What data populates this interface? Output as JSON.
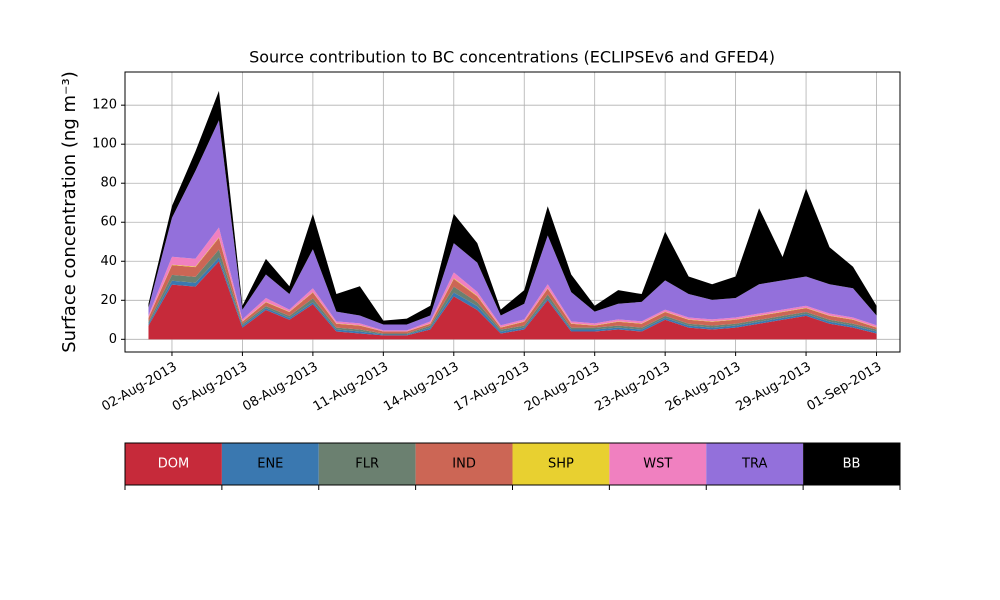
{
  "chart_data": {
    "type": "stacked_area",
    "title": "Source contribution to BC concentrations (ECLIPSEv6 and GFED4)",
    "ylabel": "Surface concentration (ng m⁻³)",
    "x": [
      "2013-08-01",
      "2013-08-02",
      "2013-08-03",
      "2013-08-04",
      "2013-08-05",
      "2013-08-06",
      "2013-08-07",
      "2013-08-08",
      "2013-08-09",
      "2013-08-10",
      "2013-08-11",
      "2013-08-12",
      "2013-08-13",
      "2013-08-14",
      "2013-08-15",
      "2013-08-16",
      "2013-08-17",
      "2013-08-18",
      "2013-08-19",
      "2013-08-20",
      "2013-08-21",
      "2013-08-22",
      "2013-08-23",
      "2013-08-24",
      "2013-08-25",
      "2013-08-26",
      "2013-08-27",
      "2013-08-28",
      "2013-08-29",
      "2013-08-30",
      "2013-08-31",
      "2013-09-01"
    ],
    "series": [
      {
        "name": "DOM",
        "color": "#c62a3a",
        "values": [
          7,
          28,
          27,
          40,
          6,
          15,
          10,
          18,
          4,
          3,
          2,
          2,
          5,
          22,
          15,
          3,
          5,
          20,
          4,
          4,
          5,
          4,
          10,
          6,
          5,
          6,
          8,
          10,
          12,
          8,
          6,
          3
        ]
      },
      {
        "name": "ENE",
        "color": "#3a78b0",
        "values": [
          1,
          2,
          2,
          2,
          1,
          1,
          1,
          1,
          1,
          1,
          0.5,
          0.5,
          1,
          2,
          2,
          1,
          1,
          1,
          1,
          1,
          1,
          1,
          1,
          1,
          1,
          1,
          1,
          1,
          1,
          1,
          1,
          1
        ]
      },
      {
        "name": "FLR",
        "color": "#6b8070",
        "values": [
          1,
          3,
          3,
          4,
          1,
          1,
          1,
          2,
          1,
          1,
          0.5,
          0.5,
          1,
          3,
          2,
          1,
          1,
          2,
          1,
          1,
          1,
          1,
          1,
          1,
          1,
          1,
          1,
          1,
          1,
          1,
          1,
          1
        ]
      },
      {
        "name": "IND",
        "color": "#cc6655",
        "values": [
          2,
          5,
          5,
          6,
          1,
          2,
          2,
          3,
          2,
          2,
          1,
          1,
          1,
          4,
          3,
          1,
          2,
          3,
          2,
          1,
          2,
          2,
          2,
          2,
          2,
          2,
          2,
          2,
          2,
          2,
          2,
          1
        ]
      },
      {
        "name": "SHP",
        "color": "#e8d030",
        "values": [
          0.2,
          0.3,
          0.3,
          0.3,
          0.2,
          0.2,
          0.2,
          0.2,
          0.2,
          0.2,
          0.1,
          0.1,
          0.2,
          0.3,
          0.3,
          0.2,
          0.2,
          0.2,
          0.2,
          0.2,
          0.2,
          0.2,
          0.2,
          0.2,
          0.2,
          0.2,
          0.2,
          0.2,
          0.2,
          0.2,
          0.2,
          0.2
        ]
      },
      {
        "name": "WST",
        "color": "#f080c0",
        "values": [
          1,
          4,
          4,
          5,
          1,
          2,
          1,
          2,
          1,
          1,
          0.5,
          0.5,
          1,
          3,
          2,
          1,
          1,
          2,
          1,
          1,
          1,
          1,
          1,
          1,
          1,
          1,
          1,
          1,
          1,
          1,
          1,
          1
        ]
      },
      {
        "name": "TRA",
        "color": "#9370db",
        "values": [
          4,
          20,
          45,
          55,
          5,
          12,
          8,
          20,
          5,
          4,
          3,
          3,
          3,
          15,
          15,
          5,
          8,
          25,
          15,
          6,
          8,
          10,
          15,
          12,
          10,
          10,
          15,
          15,
          15,
          15,
          15,
          5
        ]
      },
      {
        "name": "BB",
        "color": "#000000",
        "values": [
          2,
          6,
          10,
          15,
          2,
          8,
          4,
          18,
          9,
          15,
          2,
          3,
          5,
          15,
          10,
          3,
          7,
          15,
          9,
          3,
          7,
          4,
          25,
          9,
          8,
          11,
          39,
          12,
          45,
          19,
          11,
          5
        ]
      }
    ],
    "xlim": [
      "2013-07-31",
      "2013-09-02"
    ],
    "xticks": [
      {
        "value": "2013-08-02",
        "label": "02-Aug-2013"
      },
      {
        "value": "2013-08-05",
        "label": "05-Aug-2013"
      },
      {
        "value": "2013-08-08",
        "label": "08-Aug-2013"
      },
      {
        "value": "2013-08-11",
        "label": "11-Aug-2013"
      },
      {
        "value": "2013-08-14",
        "label": "14-Aug-2013"
      },
      {
        "value": "2013-08-17",
        "label": "17-Aug-2013"
      },
      {
        "value": "2013-08-20",
        "label": "20-Aug-2013"
      },
      {
        "value": "2013-08-23",
        "label": "23-Aug-2013"
      },
      {
        "value": "2013-08-26",
        "label": "26-Aug-2013"
      },
      {
        "value": "2013-08-29",
        "label": "29-Aug-2013"
      },
      {
        "value": "2013-09-01",
        "label": "01-Sep-2013"
      }
    ],
    "ylim": [
      -6.5,
      137
    ],
    "yticks": [
      0,
      20,
      40,
      60,
      80,
      100,
      120
    ],
    "grid": true
  }
}
